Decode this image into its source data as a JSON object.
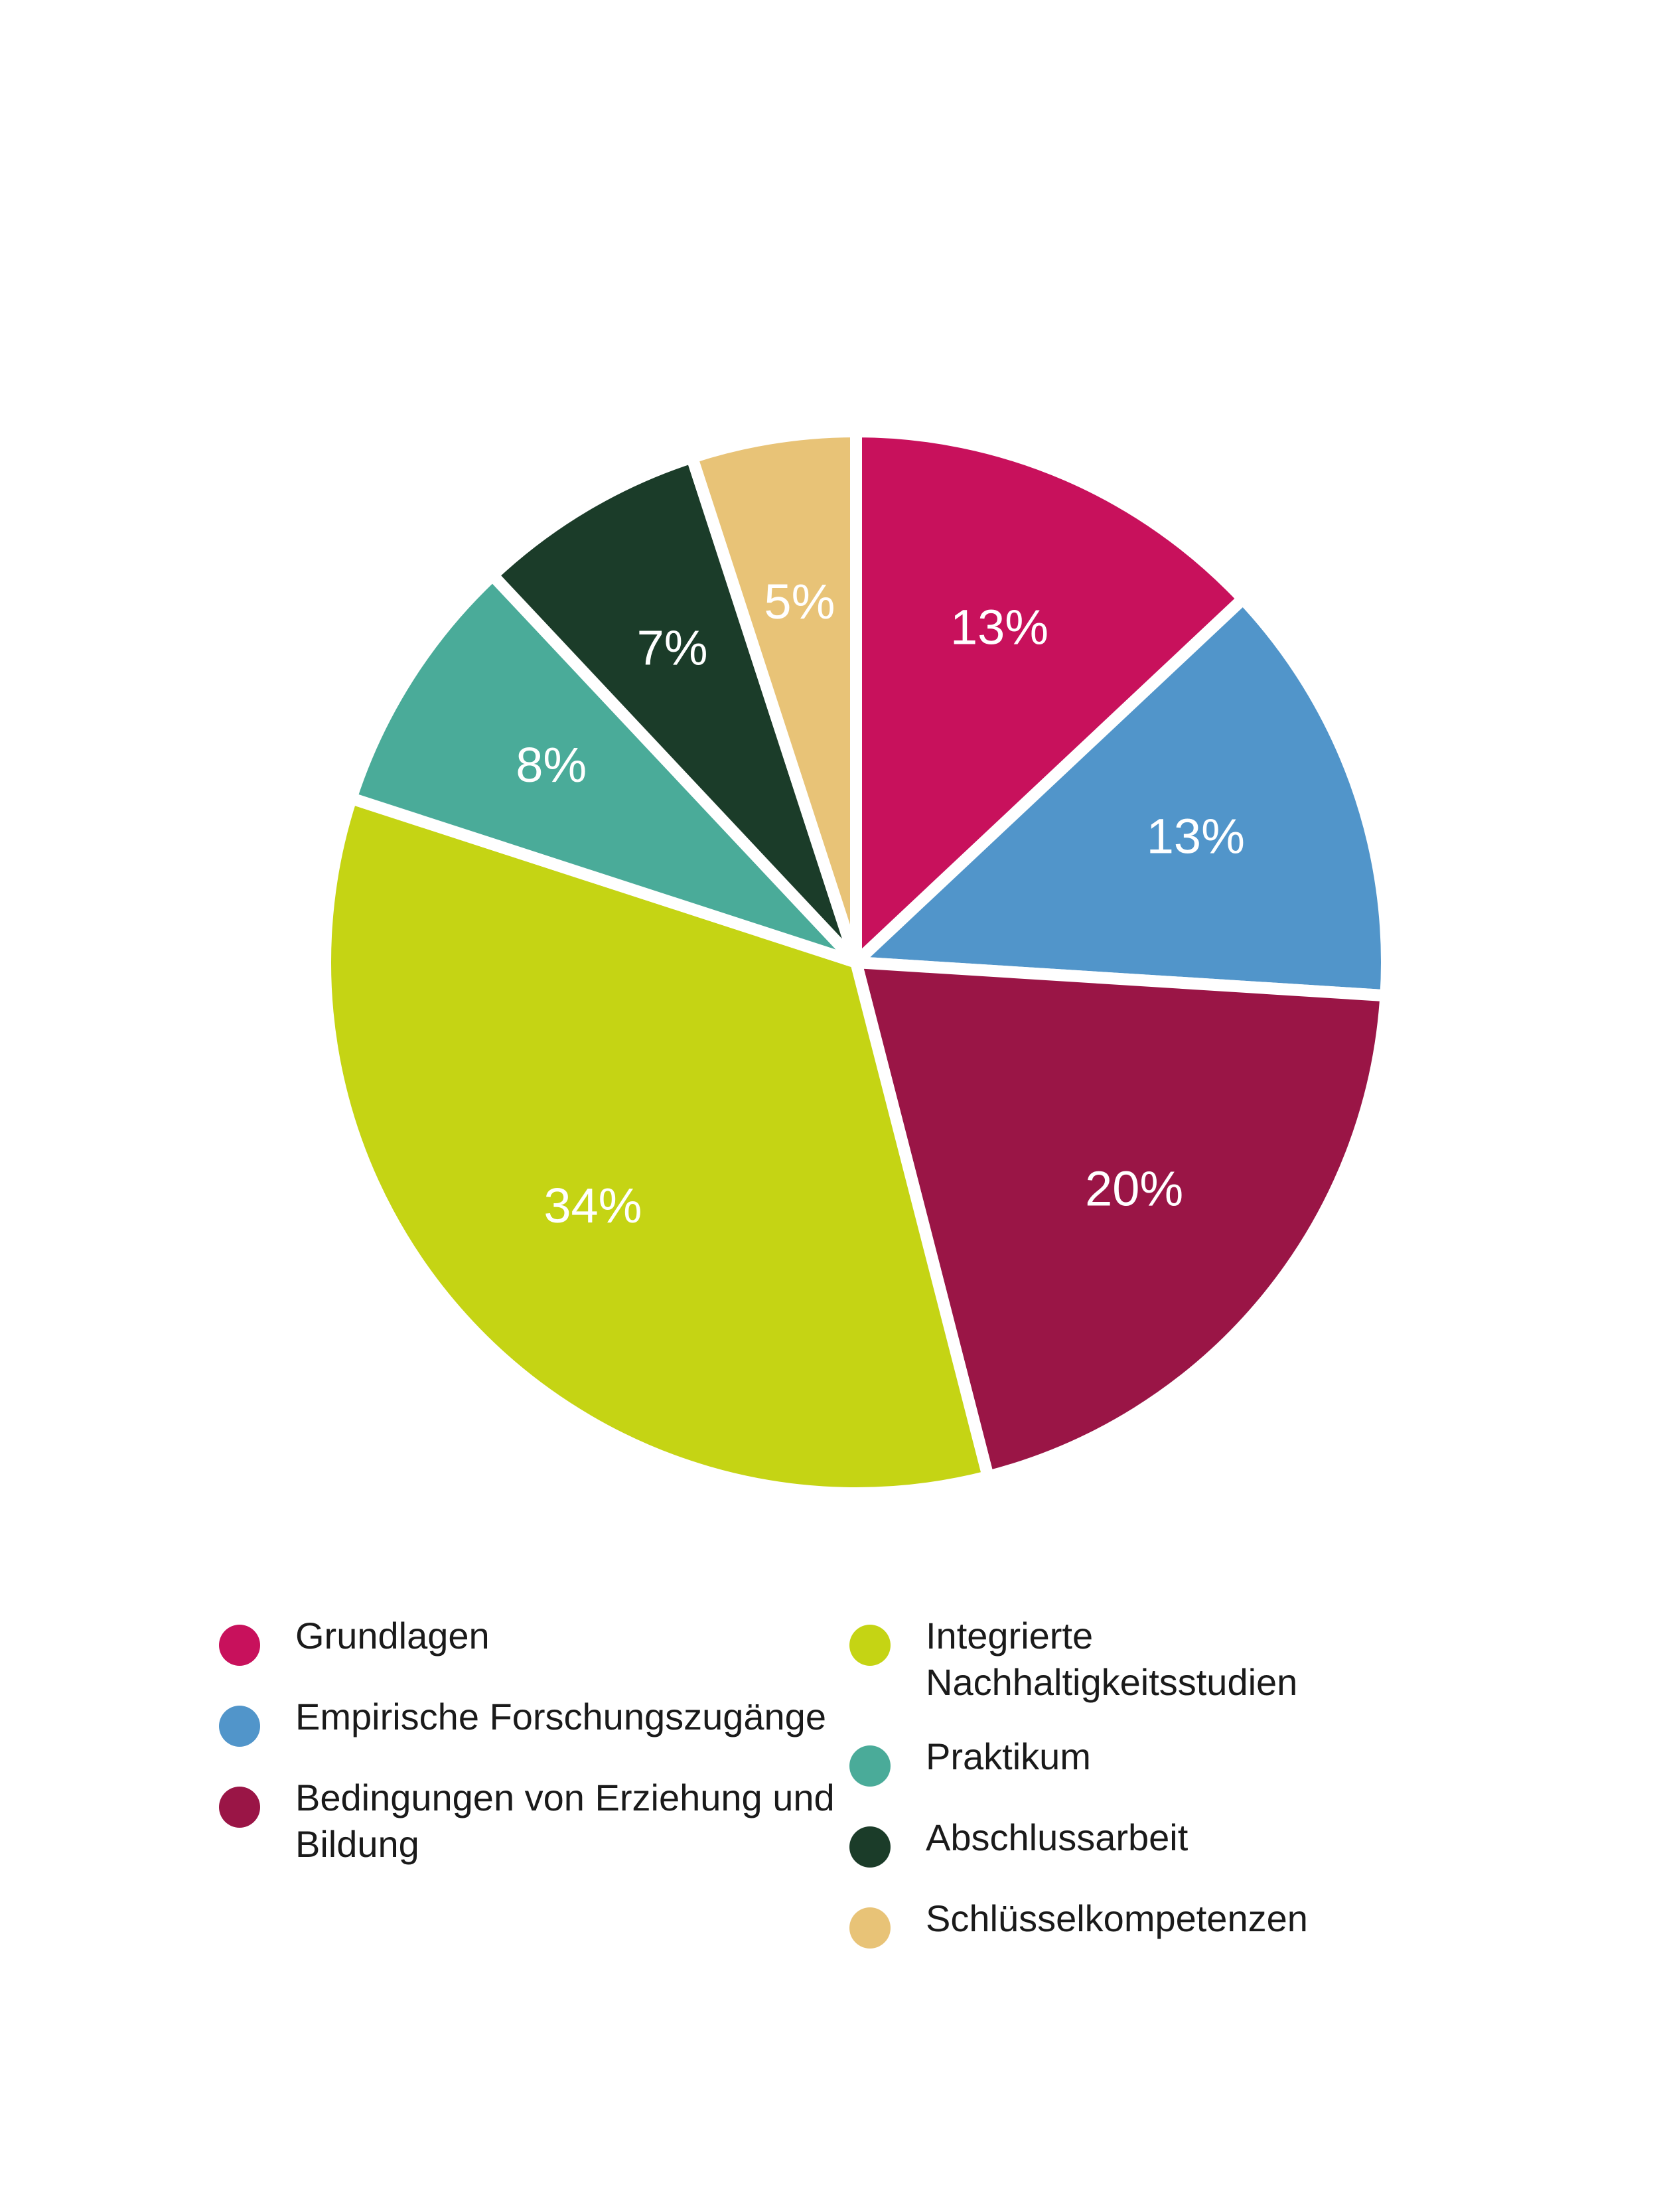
{
  "chart_data": {
    "type": "pie",
    "title": "",
    "slices": [
      {
        "name": "Grundlagen",
        "value": 13,
        "label": "13%",
        "color": "#c8115c"
      },
      {
        "name": "Empirische Forschungszugänge",
        "value": 13,
        "label": "13%",
        "color": "#5195ca"
      },
      {
        "name": "Bedingungen von Erziehung und Bildung",
        "value": 20,
        "label": "20%",
        "color": "#9a1546"
      },
      {
        "name": "Integrierte Nachhaltigkeitsstudien",
        "value": 34,
        "label": "34%",
        "color": "#c5d414"
      },
      {
        "name": "Praktikum",
        "value": 8,
        "label": "8%",
        "color": "#4aab99"
      },
      {
        "name": "Abschlussarbeit",
        "value": 7,
        "label": "7%",
        "color": "#1b3c29"
      },
      {
        "name": "Schlüsselkompetenzen",
        "value": 5,
        "label": "5%",
        "color": "#e8c377"
      }
    ],
    "legend_placement": "bottom",
    "legend_columns": [
      [
        "Grundlagen",
        "Empirische Forschungszugänge",
        "Bedingungen von Erziehung und Bildung"
      ],
      [
        "Integrierte Nachhaltigkeitsstudien",
        "Praktikum",
        "Abschlussarbeit",
        "Schlüsselkompetenzen"
      ]
    ]
  },
  "legend": {
    "left": [
      {
        "label": "Grundlagen",
        "color": "#c8115c"
      },
      {
        "label": "Empirische Forschungszugänge",
        "color": "#5195ca"
      },
      {
        "label": "Bedingungen von Erziehung und Bildung",
        "color": "#9a1546"
      }
    ],
    "right": [
      {
        "label": "Integrierte Nachhaltigkeitsstudien",
        "color": "#c5d414"
      },
      {
        "label": "Praktikum",
        "color": "#4aab99"
      },
      {
        "label": "Abschlussarbeit",
        "color": "#1b3c29"
      },
      {
        "label": "Schlüsselkompetenzen",
        "color": "#e8c377"
      }
    ]
  }
}
